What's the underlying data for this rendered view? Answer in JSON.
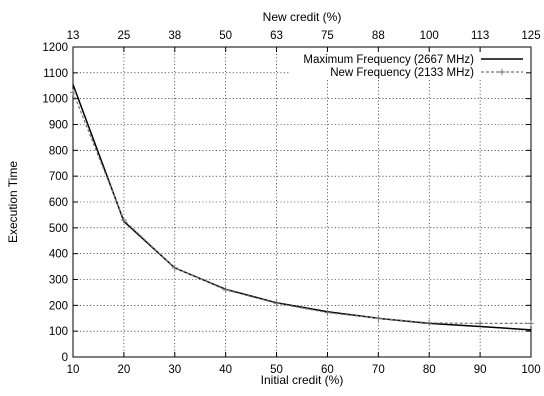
{
  "chart_data": {
    "type": "line",
    "title": "",
    "xlabel": "Initial credit (%)",
    "ylabel": "Execution Time",
    "x2label": "New credit (%)",
    "xlim": [
      10,
      100
    ],
    "ylim": [
      0,
      1200
    ],
    "x_ticks": [
      10,
      20,
      30,
      40,
      50,
      60,
      70,
      80,
      90,
      100
    ],
    "y_ticks": [
      0,
      100,
      200,
      300,
      400,
      500,
      600,
      700,
      800,
      900,
      1000,
      1100,
      1200
    ],
    "x2_ticks": [
      {
        "at": 10,
        "label": "13"
      },
      {
        "at": 20,
        "label": "25"
      },
      {
        "at": 30,
        "label": "38"
      },
      {
        "at": 40,
        "label": "50"
      },
      {
        "at": 50,
        "label": "63"
      },
      {
        "at": 60,
        "label": "75"
      },
      {
        "at": 70,
        "label": "88"
      },
      {
        "at": 80,
        "label": "100"
      },
      {
        "at": 90,
        "label": "113"
      },
      {
        "at": 100,
        "label": "125"
      }
    ],
    "grid": true,
    "legend_position": "top-right",
    "x": [
      10,
      20,
      30,
      40,
      50,
      60,
      70,
      80,
      90,
      100
    ],
    "series": [
      {
        "name": "Maximum Frequency (2667 MHz)",
        "values": [
          1055,
          525,
          345,
          262,
          210,
          175,
          150,
          130,
          118,
          105
        ],
        "color": "#000000",
        "style": "solid"
      },
      {
        "name": "New Frequency (2133 MHz)",
        "values": [
          1025,
          530,
          345,
          260,
          208,
          172,
          150,
          132,
          130,
          130
        ],
        "color": "#777777",
        "style": "dashed-plus"
      }
    ]
  }
}
